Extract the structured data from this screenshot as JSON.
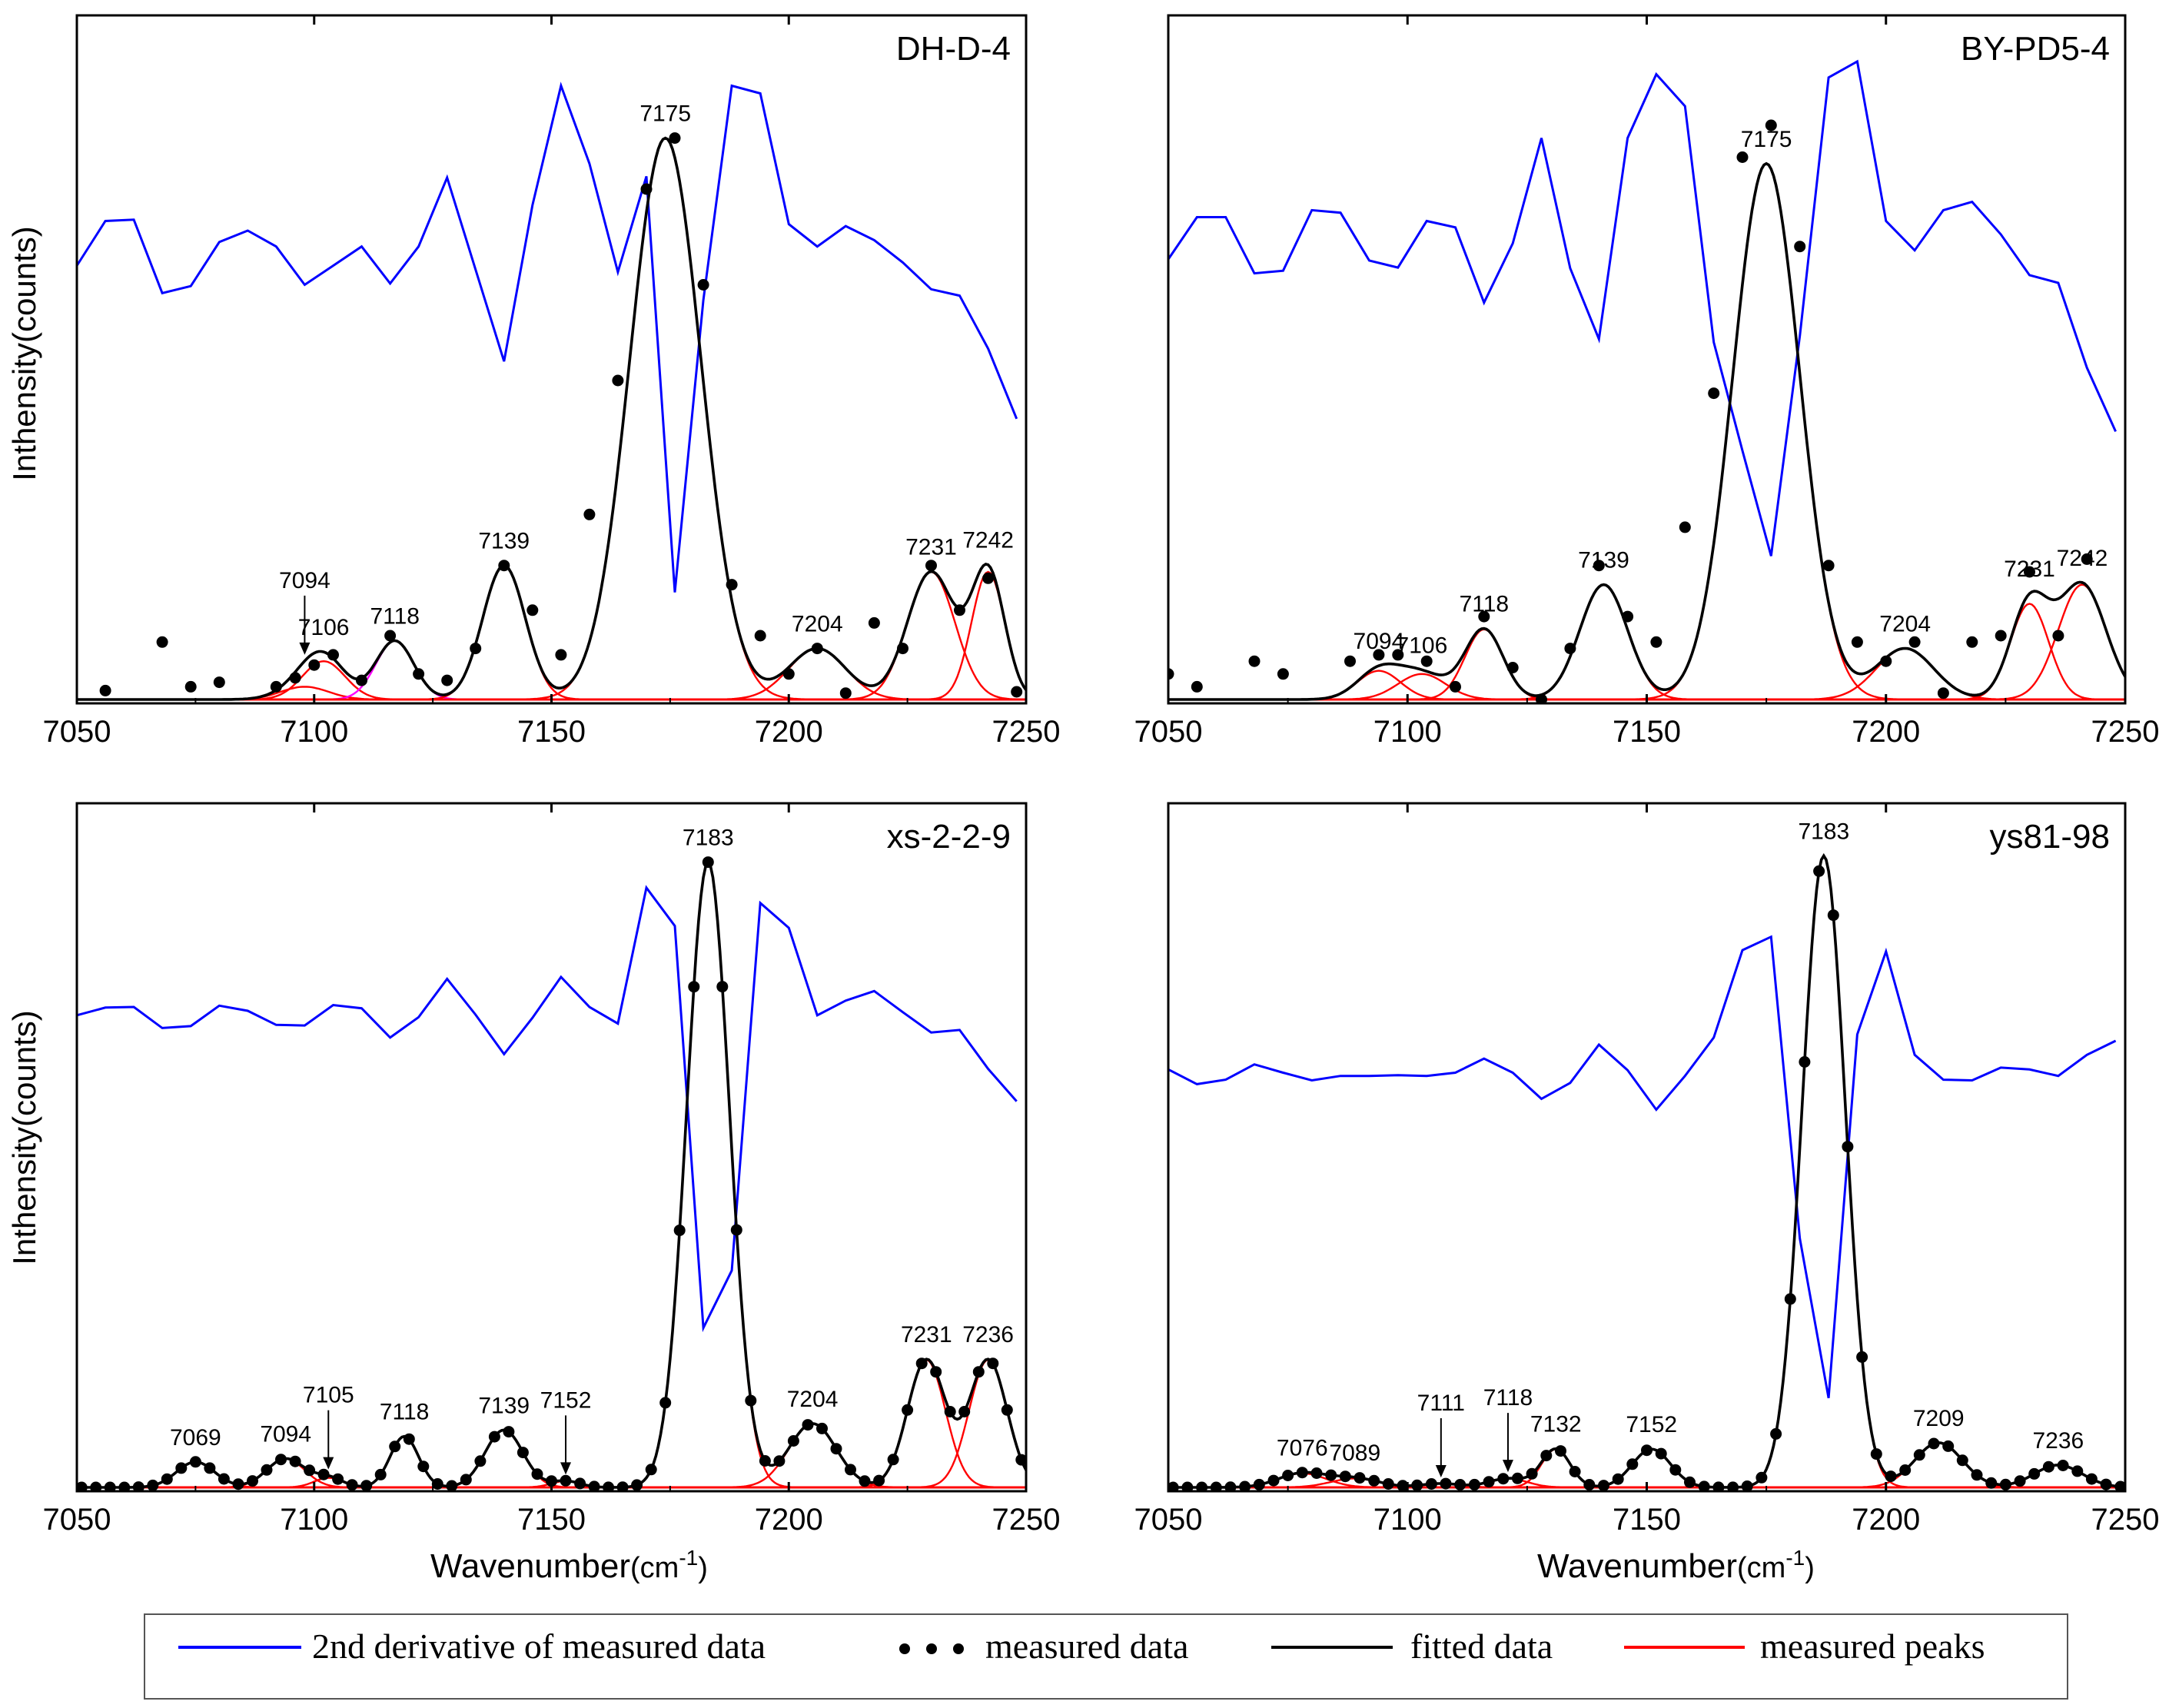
{
  "figure": {
    "x_axis_label_main": "Wavenumber",
    "x_axis_label_unit": "(cm",
    "x_axis_label_exp": "-1",
    "x_axis_label_close": ")",
    "y_axis_label": "Inthensity(counts)"
  },
  "legend": {
    "items": [
      {
        "label": "2nd derivative of measured data",
        "color": "#0000ff",
        "kind": "line"
      },
      {
        "label": "measured data",
        "color": "#000000",
        "kind": "dots"
      },
      {
        "label": "fitted data",
        "color": "#000000",
        "kind": "line"
      },
      {
        "label": "measured peaks",
        "color": "#ff0000",
        "kind": "line"
      }
    ]
  },
  "colors": {
    "derivative": "#0000ff",
    "measured": "#000000",
    "fitted": "#000000",
    "peaks": "#ff0000",
    "highlight_peak": "#ff00ff"
  },
  "chart_data": [
    {
      "type": "line",
      "title": "DH-D-4",
      "xlabel": "",
      "ylabel": "Inthensity(counts)",
      "xlim": [
        7050,
        7250
      ],
      "xticks": [
        7050,
        7100,
        7150,
        7200,
        7250
      ],
      "ylim": [
        0,
        1
      ],
      "peaks": [
        {
          "pos": 7098,
          "amp": 0.02,
          "w": 5,
          "label": "7094",
          "arrow": true,
          "highlight": false
        },
        {
          "pos": 7102,
          "amp": 0.06,
          "w": 4.5,
          "label": "7106",
          "arrow": false,
          "highlight": false
        },
        {
          "pos": 7117,
          "amp": 0.092,
          "w": 4,
          "label": "7118",
          "arrow": false,
          "highlight": true
        },
        {
          "pos": 7140,
          "amp": 0.21,
          "w": 4.5,
          "label": "7139",
          "arrow": false,
          "highlight": false
        },
        {
          "pos": 7174,
          "amp": 0.88,
          "w": 7.5,
          "label": "7175",
          "arrow": false,
          "highlight": false
        },
        {
          "pos": 7206,
          "amp": 0.08,
          "w": 6,
          "label": "7204",
          "arrow": false,
          "highlight": false
        },
        {
          "pos": 7230,
          "amp": 0.2,
          "w": 5,
          "label": "7231",
          "arrow": false,
          "highlight": false
        },
        {
          "pos": 7242,
          "amp": 0.2,
          "w": 3.5,
          "label": "7242",
          "arrow": false,
          "highlight": false
        }
      ],
      "measured": {
        "x": [
          7056,
          7068,
          7074,
          7080,
          7092,
          7096,
          7100,
          7104,
          7110,
          7116,
          7122,
          7128,
          7134,
          7140,
          7146,
          7152,
          7158,
          7164,
          7170,
          7176,
          7182,
          7188,
          7194,
          7200,
          7206,
          7212,
          7218,
          7224,
          7230,
          7236,
          7242,
          7248
        ],
        "y": [
          0.014,
          0.09,
          0.02,
          0.027,
          0.02,
          0.034,
          0.054,
          0.07,
          0.03,
          0.1,
          0.04,
          0.03,
          0.08,
          0.21,
          0.14,
          0.07,
          0.29,
          0.5,
          0.8,
          0.88,
          0.65,
          0.18,
          0.1,
          0.04,
          0.08,
          0.01,
          0.12,
          0.08,
          0.21,
          0.14,
          0.19,
          0.012
        ]
      },
      "derivative": {
        "x": [
          7050,
          7056,
          7062,
          7068,
          7074,
          7080,
          7086,
          7092,
          7098,
          7104,
          7110,
          7116,
          7122,
          7128,
          7134,
          7140,
          7146,
          7152,
          7158,
          7164,
          7170,
          7176,
          7182,
          7188,
          7194,
          7200,
          7206,
          7212,
          7218,
          7224,
          7230,
          7236,
          7242,
          7248
        ],
        "y": [
          0.68,
          0.75,
          0.752,
          0.637,
          0.648,
          0.717,
          0.735,
          0.71,
          0.65,
          0.68,
          0.71,
          0.652,
          0.71,
          0.818,
          0.674,
          0.53,
          0.775,
          0.962,
          0.84,
          0.67,
          0.82,
          0.168,
          0.626,
          0.962,
          0.95,
          0.745,
          0.71,
          0.742,
          0.72,
          0.685,
          0.643,
          0.633,
          0.55,
          0.44
        ]
      }
    },
    {
      "type": "line",
      "title": "BY-PD5-4",
      "xlabel": "",
      "ylabel": "",
      "xlim": [
        7050,
        7250
      ],
      "xticks": [
        7050,
        7100,
        7150,
        7200,
        7250
      ],
      "ylim": [
        0,
        1
      ],
      "peaks": [
        {
          "pos": 7094,
          "amp": 0.045,
          "w": 4.5,
          "label": "7094",
          "arrow": false,
          "highlight": false
        },
        {
          "pos": 7103,
          "amp": 0.04,
          "w": 5,
          "label": "7106",
          "arrow": false,
          "highlight": false
        },
        {
          "pos": 7116,
          "amp": 0.11,
          "w": 4,
          "label": "7118",
          "arrow": false,
          "highlight": false
        },
        {
          "pos": 7141,
          "amp": 0.18,
          "w": 5,
          "label": "7139",
          "arrow": false,
          "highlight": false
        },
        {
          "pos": 7175,
          "amp": 0.84,
          "w": 7,
          "label": "7175",
          "arrow": false,
          "highlight": false
        },
        {
          "pos": 7204,
          "amp": 0.08,
          "w": 6,
          "label": "7204",
          "arrow": false,
          "highlight": false
        },
        {
          "pos": 7230,
          "amp": 0.15,
          "w": 4,
          "label": "7231",
          "arrow": false,
          "highlight": false
        },
        {
          "pos": 7241,
          "amp": 0.18,
          "w": 5,
          "label": "7242",
          "arrow": false,
          "highlight": false
        }
      ],
      "measured": {
        "x": [
          7050,
          7056,
          7068,
          7074,
          7088,
          7094,
          7098,
          7104,
          7110,
          7116,
          7122,
          7128,
          7134,
          7140,
          7146,
          7152,
          7158,
          7164,
          7170,
          7176,
          7182,
          7188,
          7194,
          7200,
          7206,
          7212,
          7218,
          7224,
          7230,
          7236,
          7242
        ],
        "y": [
          0.04,
          0.02,
          0.06,
          0.04,
          0.06,
          0.07,
          0.07,
          0.06,
          0.02,
          0.13,
          0.05,
          0.0,
          0.08,
          0.21,
          0.13,
          0.09,
          0.27,
          0.48,
          0.85,
          0.9,
          0.71,
          0.21,
          0.09,
          0.06,
          0.09,
          0.01,
          0.09,
          0.1,
          0.2,
          0.1,
          0.22
        ]
      },
      "derivative": {
        "x": [
          7050,
          7056,
          7062,
          7068,
          7074,
          7080,
          7086,
          7092,
          7098,
          7104,
          7110,
          7116,
          7122,
          7128,
          7134,
          7140,
          7146,
          7152,
          7158,
          7164,
          7170,
          7176,
          7182,
          7188,
          7194,
          7200,
          7206,
          7212,
          7218,
          7224,
          7230,
          7236,
          7242,
          7248
        ],
        "y": [
          0.69,
          0.756,
          0.756,
          0.668,
          0.672,
          0.767,
          0.763,
          0.688,
          0.677,
          0.75,
          0.74,
          0.622,
          0.715,
          0.88,
          0.676,
          0.565,
          0.88,
          0.98,
          0.93,
          0.56,
          0.39,
          0.225,
          0.57,
          0.975,
          1.0,
          0.75,
          0.704,
          0.767,
          0.78,
          0.729,
          0.665,
          0.653,
          0.52,
          0.42
        ]
      }
    },
    {
      "type": "line",
      "title": "xs-2-2-9",
      "xlabel": "Wavenumber(cm-1)",
      "ylabel": "Inthensity(counts)",
      "xlim": [
        7050,
        7250
      ],
      "xticks": [
        7050,
        7100,
        7150,
        7200,
        7250
      ],
      "ylim": [
        0,
        1
      ],
      "peaks": [
        {
          "pos": 7075,
          "amp": 0.04,
          "w": 4,
          "label": "7069",
          "arrow": false,
          "highlight": false
        },
        {
          "pos": 7094,
          "amp": 0.045,
          "w": 4,
          "label": "7094",
          "arrow": false,
          "highlight": false
        },
        {
          "pos": 7103,
          "amp": 0.015,
          "w": 3,
          "label": "7105",
          "arrow": true,
          "highlight": false
        },
        {
          "pos": 7119,
          "amp": 0.08,
          "w": 3,
          "label": "7118",
          "arrow": false,
          "highlight": false
        },
        {
          "pos": 7140,
          "amp": 0.09,
          "w": 4,
          "label": "7139",
          "arrow": false,
          "highlight": false
        },
        {
          "pos": 7153,
          "amp": 0.01,
          "w": 3,
          "label": "7152",
          "arrow": true,
          "highlight": false
        },
        {
          "pos": 7183,
          "amp": 0.98,
          "w": 4.5,
          "label": "7183",
          "arrow": false,
          "highlight": false
        },
        {
          "pos": 7205,
          "amp": 0.1,
          "w": 5,
          "label": "7204",
          "arrow": false,
          "highlight": false
        },
        {
          "pos": 7229,
          "amp": 0.2,
          "w": 4,
          "label": "7231",
          "arrow": false,
          "highlight": false
        },
        {
          "pos": 7242,
          "amp": 0.2,
          "w": 4,
          "label": "7236",
          "arrow": false,
          "highlight": false
        }
      ],
      "measured": {
        "x": [],
        "y": []
      },
      "measured_dense_step": 3,
      "derivative": {
        "x": [
          7050,
          7056,
          7062,
          7068,
          7074,
          7080,
          7086,
          7092,
          7098,
          7104,
          7110,
          7116,
          7122,
          7128,
          7134,
          7140,
          7146,
          7152,
          7158,
          7164,
          7170,
          7176,
          7182,
          7188,
          7194,
          7200,
          7206,
          7212,
          7218,
          7224,
          7230,
          7236,
          7242,
          7248
        ],
        "y": [
          0.74,
          0.752,
          0.753,
          0.72,
          0.723,
          0.755,
          0.747,
          0.725,
          0.724,
          0.756,
          0.751,
          0.705,
          0.737,
          0.797,
          0.741,
          0.679,
          0.736,
          0.8,
          0.753,
          0.727,
          0.94,
          0.88,
          0.25,
          0.34,
          0.916,
          0.877,
          0.74,
          0.763,
          0.778,
          0.745,
          0.713,
          0.717,
          0.656,
          0.605
        ]
      }
    },
    {
      "type": "line",
      "title": "ys81-98",
      "xlabel": "Wavenumber(cm-1)",
      "ylabel": "",
      "xlim": [
        7050,
        7250
      ],
      "xticks": [
        7050,
        7100,
        7150,
        7200,
        7250
      ],
      "ylim": [
        0,
        1
      ],
      "peaks": [
        {
          "pos": 7078,
          "amp": 0.022,
          "w": 5,
          "label": "7076",
          "arrow": false,
          "highlight": false
        },
        {
          "pos": 7089,
          "amp": 0.014,
          "w": 5,
          "label": "7089",
          "arrow": false,
          "highlight": false
        },
        {
          "pos": 7107,
          "amp": 0.006,
          "w": 4,
          "label": "7111",
          "arrow": true,
          "highlight": false
        },
        {
          "pos": 7121,
          "amp": 0.014,
          "w": 4,
          "label": "7118",
          "arrow": true,
          "highlight": false
        },
        {
          "pos": 7131,
          "amp": 0.06,
          "w": 3,
          "label": "7132",
          "arrow": false,
          "highlight": false
        },
        {
          "pos": 7151,
          "amp": 0.06,
          "w": 4,
          "label": "7152",
          "arrow": false,
          "highlight": false
        },
        {
          "pos": 7187,
          "amp": 0.99,
          "w": 4.5,
          "label": "7183",
          "arrow": false,
          "highlight": false
        },
        {
          "pos": 7211,
          "amp": 0.07,
          "w": 5,
          "label": "7209",
          "arrow": false,
          "highlight": false
        },
        {
          "pos": 7236,
          "amp": 0.035,
          "w": 5,
          "label": "7236",
          "arrow": false,
          "highlight": false
        }
      ],
      "measured": {
        "x": [],
        "y": []
      },
      "measured_dense_step": 3,
      "derivative": {
        "x": [
          7050,
          7056,
          7062,
          7068,
          7074,
          7080,
          7086,
          7092,
          7098,
          7104,
          7110,
          7116,
          7122,
          7128,
          7134,
          7140,
          7146,
          7152,
          7158,
          7164,
          7170,
          7176,
          7182,
          7188,
          7194,
          7200,
          7206,
          7212,
          7218,
          7224,
          7230,
          7236,
          7242,
          7248
        ],
        "y": [
          0.655,
          0.632,
          0.639,
          0.663,
          0.65,
          0.638,
          0.645,
          0.645,
          0.646,
          0.645,
          0.65,
          0.672,
          0.65,
          0.609,
          0.634,
          0.694,
          0.654,
          0.592,
          0.645,
          0.705,
          0.842,
          0.863,
          0.39,
          0.14,
          0.71,
          0.84,
          0.678,
          0.639,
          0.638,
          0.658,
          0.655,
          0.645,
          0.678,
          0.7
        ]
      }
    }
  ]
}
